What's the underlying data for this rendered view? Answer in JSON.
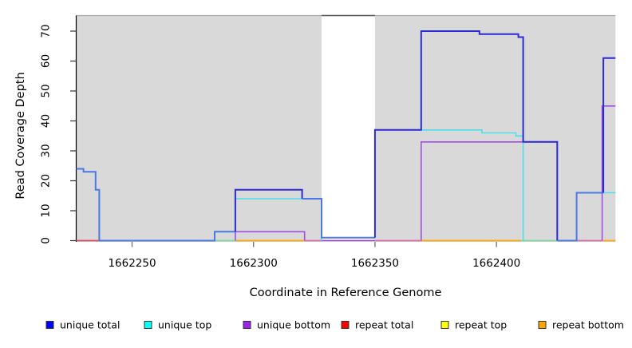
{
  "figure": {
    "ylabel": "Read Coverage Depth",
    "xlabel": "Coordinate in Reference Genome"
  },
  "legend": {
    "items": [
      {
        "label": "unique total",
        "color": "#0000FF"
      },
      {
        "label": "unique top",
        "color": "#00FFFF"
      },
      {
        "label": "unique bottom",
        "color": "#A020F0"
      },
      {
        "label": "repeat total",
        "color": "#FF0000"
      },
      {
        "label": "repeat top",
        "color": "#FFFF00"
      },
      {
        "label": "repeat bottom",
        "color": "#FFA500"
      }
    ]
  },
  "chart_data": {
    "type": "line",
    "subtype": "step-after-coverage",
    "title": "",
    "xlabel": "Coordinate in Reference Genome",
    "ylabel": "Read Coverage Depth",
    "xlim": [
      1662227,
      1662449
    ],
    "ylim": [
      0,
      75
    ],
    "x_ticks": [
      1662250,
      1662300,
      1662350,
      1662400
    ],
    "y_ticks": [
      0,
      10,
      20,
      30,
      40,
      50,
      60,
      70
    ],
    "grid": false,
    "legend_position": "bottom",
    "background_regions": [
      {
        "x0": 1662227,
        "x1": 1662328,
        "color": "#d9d9d9",
        "meaning": "covered-region"
      },
      {
        "x0": 1662328,
        "x1": 1662350,
        "color": "#ffffff",
        "meaning": "gap-region"
      },
      {
        "x0": 1662350,
        "x1": 1662449,
        "color": "#d9d9d9",
        "meaning": "covered-region"
      }
    ],
    "series": [
      {
        "name": "unique total",
        "color": "#0000FF",
        "steps": [
          [
            1662227,
            24
          ],
          [
            1662230,
            23
          ],
          [
            1662235,
            17
          ],
          [
            1662236,
            0
          ],
          [
            1662284,
            3
          ],
          [
            1662292,
            17
          ],
          [
            1662320,
            14
          ],
          [
            1662328,
            1
          ],
          [
            1662350,
            37
          ],
          [
            1662369,
            70
          ],
          [
            1662393,
            69
          ],
          [
            1662409,
            68
          ],
          [
            1662411,
            33
          ],
          [
            1662425,
            0
          ],
          [
            1662433,
            16
          ],
          [
            1662444,
            61
          ],
          [
            1662449,
            61
          ]
        ]
      },
      {
        "name": "unique top",
        "color": "#00FFFF",
        "steps": [
          [
            1662227,
            0
          ],
          [
            1662292,
            14
          ],
          [
            1662328,
            0
          ],
          [
            1662369,
            37
          ],
          [
            1662394,
            36
          ],
          [
            1662408,
            35
          ],
          [
            1662411,
            0
          ],
          [
            1662433,
            16
          ],
          [
            1662449,
            16
          ]
        ]
      },
      {
        "name": "unique bottom",
        "color": "#A020F0",
        "steps": [
          [
            1662227,
            0
          ],
          [
            1662292,
            3
          ],
          [
            1662321,
            0
          ],
          [
            1662369,
            33
          ],
          [
            1662425,
            0
          ],
          [
            1662443,
            45
          ],
          [
            1662449,
            45
          ]
        ]
      },
      {
        "name": "repeat total",
        "color": "#FF0000",
        "steps": [
          [
            1662227,
            0
          ],
          [
            1662449,
            0
          ]
        ]
      },
      {
        "name": "repeat top",
        "color": "#FFFF00",
        "steps": [
          [
            1662227,
            0
          ],
          [
            1662449,
            0
          ]
        ]
      },
      {
        "name": "repeat bottom",
        "color": "#FFA500",
        "steps": [
          [
            1662227,
            0
          ],
          [
            1662449,
            0
          ]
        ]
      }
    ],
    "baseline_segments": [
      {
        "color": "#E0485E",
        "x0": 1662227,
        "x1": 1662236.5
      },
      {
        "color": "#5950E2",
        "x0": 1662236.5,
        "x1": 1662284
      },
      {
        "color": "#7ED89E",
        "x0": 1662284,
        "x1": 1662292.5
      },
      {
        "color": "#FFA500",
        "x0": 1662292.5,
        "x1": 1662321
      },
      {
        "color": "#D66CB0",
        "x0": 1662321,
        "x1": 1662328
      },
      {
        "color": "#9247D0",
        "x0": 1662328,
        "x1": 1662350
      },
      {
        "color": "#D66CB0",
        "x0": 1662350,
        "x1": 1662369
      },
      {
        "color": "#FFA500",
        "x0": 1662369,
        "x1": 1662410
      },
      {
        "color": "#7ED89E",
        "x0": 1662410,
        "x1": 1662425
      },
      {
        "color": "#D66CB0",
        "x0": 1662433,
        "x1": 1662443.5
      },
      {
        "color": "#FFA500",
        "x0": 1662443.5,
        "x1": 1662449
      }
    ],
    "render_polylines": [
      {
        "series": "unique top",
        "color": "#4DE0EC",
        "w": 1.6,
        "pts": [
          [
            1662292.5,
            0
          ],
          [
            1662292.5,
            14
          ],
          [
            1662328,
            14
          ],
          [
            1662328,
            0
          ]
        ]
      },
      {
        "series": "unique top",
        "color": "#4DE0EC",
        "w": 1.6,
        "pts": [
          [
            1662369,
            37
          ],
          [
            1662394,
            37
          ],
          [
            1662394,
            36
          ],
          [
            1662408,
            36
          ],
          [
            1662408,
            35
          ],
          [
            1662411,
            35
          ],
          [
            1662411,
            0
          ]
        ]
      },
      {
        "series": "unique top",
        "color": "#4DE0EC",
        "w": 1.6,
        "pts": [
          [
            1662433,
            0
          ],
          [
            1662433,
            16
          ],
          [
            1662449,
            16
          ]
        ]
      },
      {
        "series": "unique bottom",
        "color": "#A24DE8",
        "w": 1.6,
        "pts": [
          [
            1662292.5,
            0
          ],
          [
            1662292.5,
            3
          ],
          [
            1662321,
            3
          ],
          [
            1662321,
            0
          ]
        ]
      },
      {
        "series": "unique bottom",
        "color": "#A24DE8",
        "w": 1.6,
        "pts": [
          [
            1662369,
            0
          ],
          [
            1662369,
            33
          ],
          [
            1662425,
            33
          ],
          [
            1662425,
            0
          ]
        ]
      },
      {
        "series": "unique bottom",
        "color": "#A24DE8",
        "w": 1.6,
        "pts": [
          [
            1662443.5,
            0
          ],
          [
            1662443.5,
            45
          ],
          [
            1662449,
            45
          ]
        ]
      },
      {
        "series": "unique total",
        "color": "#4B79E6",
        "w": 2,
        "pts": [
          [
            1662227,
            24
          ],
          [
            1662230,
            24
          ],
          [
            1662230,
            23
          ],
          [
            1662235,
            23
          ],
          [
            1662235,
            17
          ],
          [
            1662236.5,
            17
          ],
          [
            1662236.5,
            0
          ],
          [
            1662284,
            0
          ],
          [
            1662284,
            3
          ],
          [
            1662292.5,
            3
          ]
        ]
      },
      {
        "series": "unique total",
        "color": "#2B2BD5",
        "w": 2,
        "pts": [
          [
            1662292.5,
            3
          ],
          [
            1662292.5,
            17
          ],
          [
            1662320,
            17
          ],
          [
            1662320,
            14
          ]
        ]
      },
      {
        "series": "unique total",
        "color": "#4B79E6",
        "w": 2,
        "pts": [
          [
            1662320,
            14
          ],
          [
            1662328,
            14
          ],
          [
            1662328,
            1
          ],
          [
            1662350,
            1
          ]
        ]
      },
      {
        "series": "unique total",
        "color": "#2B2BD5",
        "w": 2,
        "pts": [
          [
            1662350,
            1
          ],
          [
            1662350,
            37
          ],
          [
            1662369,
            37
          ],
          [
            1662369,
            70
          ],
          [
            1662393,
            70
          ],
          [
            1662393,
            69
          ],
          [
            1662409,
            69
          ],
          [
            1662409,
            68
          ],
          [
            1662411,
            68
          ],
          [
            1662411,
            33
          ],
          [
            1662425,
            33
          ],
          [
            1662425,
            0
          ]
        ]
      },
      {
        "series": "unique total",
        "color": "#4B79E6",
        "w": 2,
        "pts": [
          [
            1662425,
            0
          ],
          [
            1662433,
            0
          ],
          [
            1662433,
            16
          ],
          [
            1662444,
            16
          ]
        ]
      },
      {
        "series": "unique total",
        "color": "#2B2BD5",
        "w": 2,
        "pts": [
          [
            1662444,
            16
          ],
          [
            1662444,
            61
          ],
          [
            1662449,
            61
          ]
        ]
      }
    ]
  }
}
